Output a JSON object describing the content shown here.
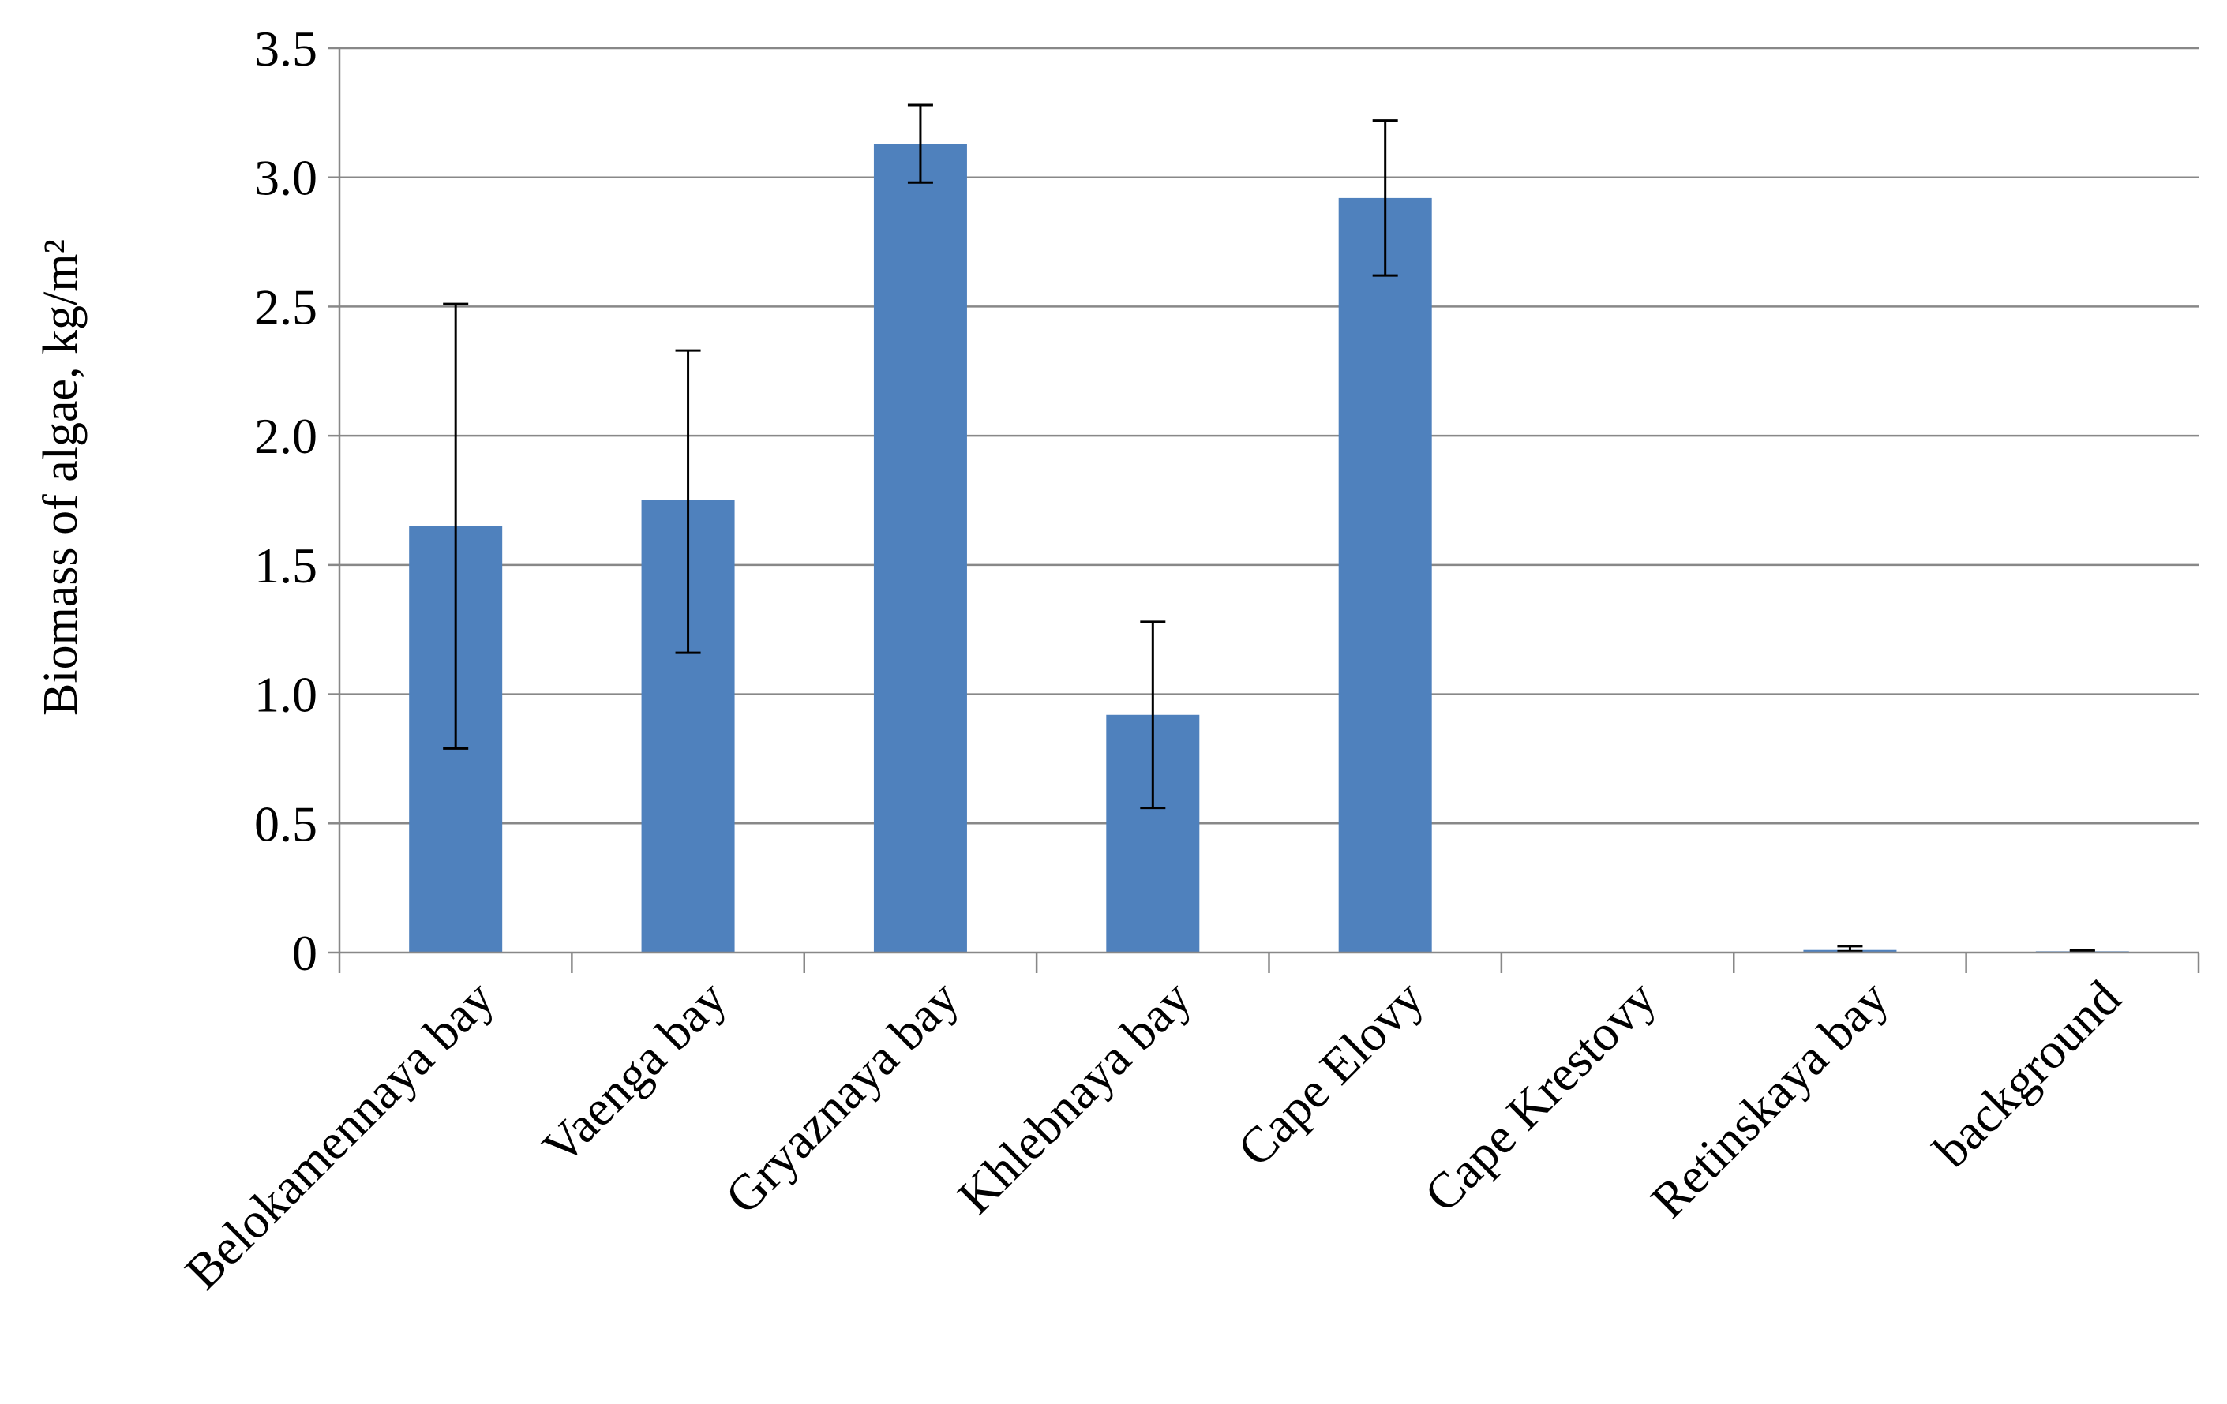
{
  "chart_data": {
    "type": "bar",
    "title": "",
    "xlabel": "",
    "ylabel": "Biomass  of algae, kg/m²",
    "categories": [
      "Belokamennaya bay",
      "Vaenga bay",
      "Gryaznaya bay",
      "Khlebnaya bay",
      "Cape Elovy",
      "Cape Krestovy",
      "Retinskaya bay",
      "background"
    ],
    "values": [
      1.65,
      1.75,
      3.13,
      0.92,
      2.92,
      0,
      0.01,
      0.005
    ],
    "error_upper": [
      2.51,
      2.33,
      3.28,
      1.28,
      3.22,
      0,
      0.025,
      0.01
    ],
    "error_lower": [
      0.79,
      1.16,
      2.98,
      0.56,
      2.62,
      0,
      0.005,
      0.005
    ],
    "ylim": [
      0,
      3.5
    ],
    "yticks": [
      0,
      0.5,
      1.0,
      1.5,
      2.0,
      2.5,
      3.0,
      3.5
    ],
    "ytick_labels": [
      "0",
      "0.5",
      "1.0",
      "1.5",
      "2.0",
      "2.5",
      "3.0",
      "3.5"
    ],
    "bar_color": "#4f81bd",
    "grid": true,
    "legend": "none"
  }
}
